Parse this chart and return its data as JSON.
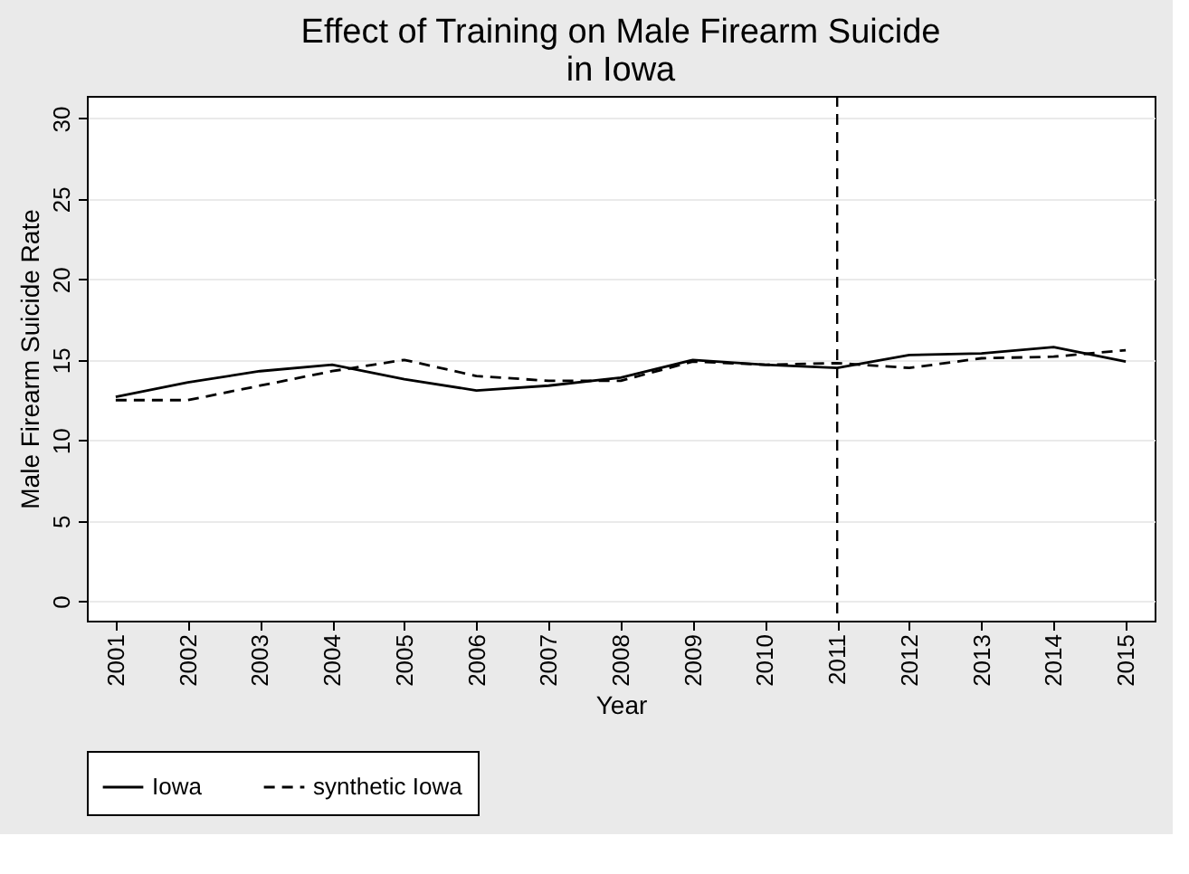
{
  "chart_data": {
    "type": "line",
    "title": "Effect of Training on Male Firearm Suicide\nin Iowa",
    "xlabel": "Year",
    "ylabel": "Male Firearm Suicide Rate",
    "x": [
      2001,
      2002,
      2003,
      2004,
      2005,
      2006,
      2007,
      2008,
      2009,
      2010,
      2011,
      2012,
      2013,
      2014,
      2015
    ],
    "series": [
      {
        "name": "Iowa",
        "color": "#000000",
        "line_style": "solid",
        "values": [
          12.7,
          13.6,
          14.3,
          14.7,
          13.8,
          13.1,
          13.4,
          13.9,
          15.0,
          14.7,
          14.5,
          15.3,
          15.4,
          15.8,
          14.9
        ]
      },
      {
        "name": "synthetic Iowa",
        "color": "#000000",
        "line_style": "dashed",
        "values": [
          12.5,
          12.5,
          13.4,
          14.3,
          15.0,
          14.0,
          13.7,
          13.7,
          14.9,
          14.7,
          14.8,
          14.5,
          15.1,
          15.2,
          15.6
        ]
      }
    ],
    "xlim": [
      2000.6,
      2015.4
    ],
    "xticks": [
      2001,
      2002,
      2003,
      2004,
      2005,
      2006,
      2007,
      2008,
      2009,
      2010,
      2011,
      2012,
      2013,
      2014,
      2015
    ],
    "ylim": [
      -1.2,
      31.4
    ],
    "yticks": [
      0,
      5,
      10,
      15,
      20,
      25,
      30
    ],
    "ref_lines": [
      {
        "axis": "x",
        "value": 2011,
        "line_style": "dashed",
        "color": "#000000"
      }
    ],
    "grid": "y",
    "legend": "bottom"
  }
}
